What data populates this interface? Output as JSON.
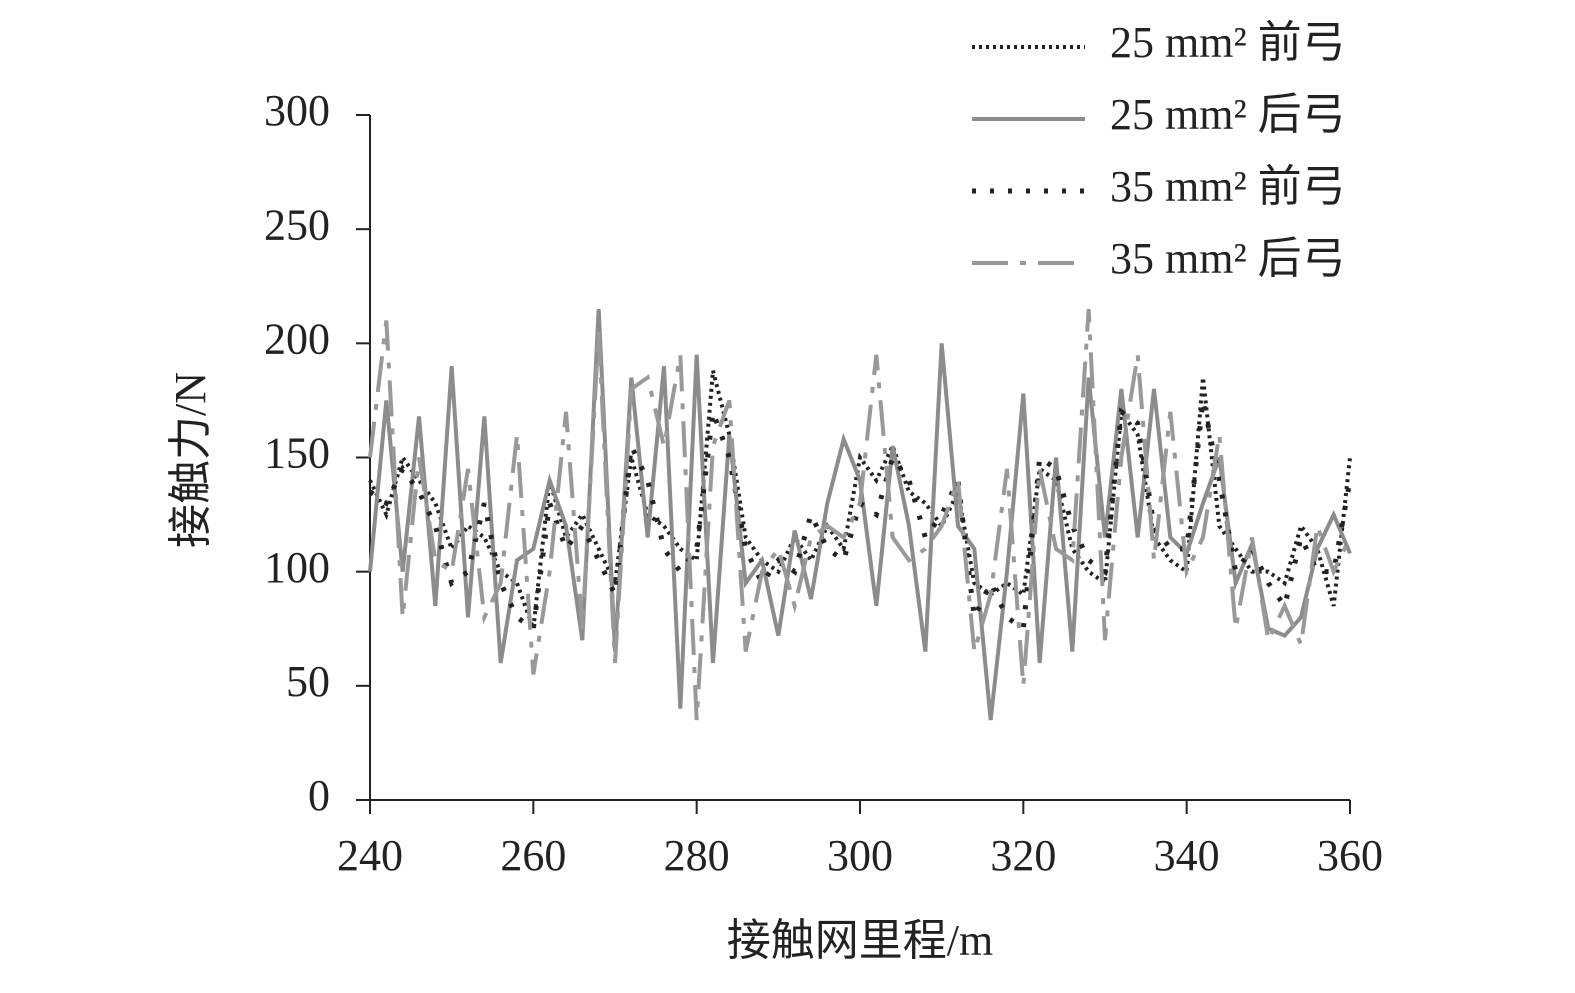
{
  "chart_data": {
    "type": "line",
    "x_label": "接触网里程/m",
    "y_label": "接触力/N",
    "x": [
      240,
      242,
      244,
      246,
      248,
      250,
      252,
      254,
      256,
      258,
      260,
      262,
      264,
      266,
      268,
      270,
      272,
      274,
      276,
      278,
      280,
      282,
      284,
      286,
      288,
      290,
      292,
      294,
      296,
      298,
      300,
      302,
      304,
      306,
      308,
      310,
      312,
      314,
      316,
      318,
      320,
      322,
      324,
      326,
      328,
      330,
      332,
      334,
      336,
      338,
      340,
      342,
      344,
      346,
      348,
      350,
      352,
      354,
      356,
      358,
      360
    ],
    "series": [
      {
        "name": "25 mm² 前弓",
        "color": "#222222",
        "style": "dotted",
        "values": [
          140,
          125,
          150,
          140,
          130,
          110,
          120,
          115,
          100,
          95,
          75,
          140,
          115,
          125,
          110,
          95,
          150,
          125,
          120,
          110,
          105,
          188,
          160,
          115,
          105,
          100,
          115,
          105,
          120,
          110,
          150,
          140,
          155,
          135,
          130,
          120,
          135,
          95,
          90,
          95,
          90,
          145,
          140,
          110,
          100,
          95,
          170,
          160,
          115,
          105,
          100,
          185,
          120,
          110,
          100,
          100,
          95,
          120,
          110,
          85,
          150
        ]
      },
      {
        "name": "25 mm² 后弓",
        "color": "#8c8c8c",
        "style": "solid",
        "values": [
          100,
          175,
          100,
          168,
          85,
          190,
          80,
          168,
          60,
          105,
          110,
          140,
          120,
          70,
          215,
          65,
          185,
          115,
          190,
          40,
          195,
          60,
          160,
          95,
          105,
          72,
          118,
          88,
          130,
          158,
          140,
          85,
          155,
          120,
          65,
          200,
          120,
          110,
          35,
          100,
          178,
          60,
          150,
          65,
          185,
          115,
          180,
          115,
          180,
          115,
          108,
          130,
          150,
          95,
          112,
          75,
          72,
          80,
          110,
          125,
          108
        ]
      },
      {
        "name": "35 mm² 前弓",
        "color": "#222222",
        "style": "dots",
        "values": [
          135,
          130,
          145,
          135,
          120,
          95,
          100,
          130,
          95,
          80,
          75,
          130,
          110,
          120,
          105,
          90,
          155,
          140,
          110,
          100,
          110,
          170,
          150,
          110,
          95,
          105,
          100,
          125,
          110,
          105,
          130,
          125,
          150,
          140,
          115,
          125,
          140,
          80,
          95,
          80,
          75,
          150,
          145,
          120,
          105,
          100,
          170,
          165,
          120,
          110,
          110,
          175,
          140,
          100,
          110,
          95,
          85,
          115,
          100,
          100,
          140
        ]
      },
      {
        "name": "35 mm² 后弓",
        "color": "#999999",
        "style": "dash-dot",
        "values": [
          150,
          210,
          80,
          150,
          105,
          100,
          145,
          80,
          95,
          160,
          55,
          100,
          170,
          75,
          205,
          60,
          180,
          185,
          155,
          195,
          35,
          155,
          175,
          65,
          100,
          110,
          85,
          115,
          120,
          115,
          130,
          195,
          115,
          105,
          110,
          120,
          140,
          65,
          90,
          145,
          50,
          145,
          110,
          105,
          215,
          70,
          150,
          195,
          105,
          170,
          100,
          115,
          160,
          75,
          115,
          70,
          85,
          68,
          120,
          100,
          115
        ]
      }
    ],
    "xlim": [
      240,
      360
    ],
    "xticks": [
      240,
      260,
      280,
      300,
      320,
      340,
      360
    ],
    "ylim": [
      0,
      300
    ],
    "yticks": [
      0,
      50,
      100,
      150,
      200,
      250,
      300
    ],
    "legend": "top-right"
  }
}
